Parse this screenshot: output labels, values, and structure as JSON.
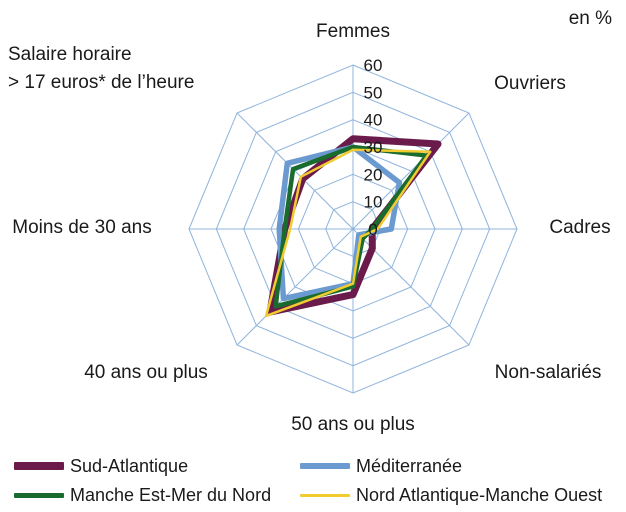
{
  "chart_data": {
    "type": "radar",
    "unit_note": "en %",
    "annotation": [
      "Salaire horaire",
      "> 17 euros* de l’heure"
    ],
    "axes": [
      "Femmes",
      "Ouvriers",
      "Cadres",
      "Non-salariés",
      "50 ans ou plus",
      "40 ans ou plus",
      "Moins de 30 ans",
      "Salaire horaire > 17 euros* de l’heure"
    ],
    "range": [
      0,
      60
    ],
    "ticks": [
      0,
      10,
      20,
      30,
      40,
      50,
      60
    ],
    "grid": true,
    "legend_position": "bottom",
    "series": [
      {
        "name": "Sud-Atlantique",
        "color": "#6b1b4b",
        "values": [
          33,
          44,
          7,
          10,
          24,
          43,
          25,
          26
        ]
      },
      {
        "name": "Méditerranée",
        "color": "#6a9ad0",
        "values": [
          30,
          24,
          14,
          3,
          20,
          36,
          27,
          34
        ]
      },
      {
        "name": "Manche Est-Mer du Nord",
        "color": "#1a6b2e",
        "values": [
          30,
          38,
          7,
          5,
          21,
          40,
          25,
          31
        ]
      },
      {
        "name": "Nord Atlantique-Manche Ouest",
        "color": "#f0cc30",
        "values": [
          29,
          40,
          9,
          4,
          20,
          45,
          23,
          27
        ]
      }
    ]
  }
}
